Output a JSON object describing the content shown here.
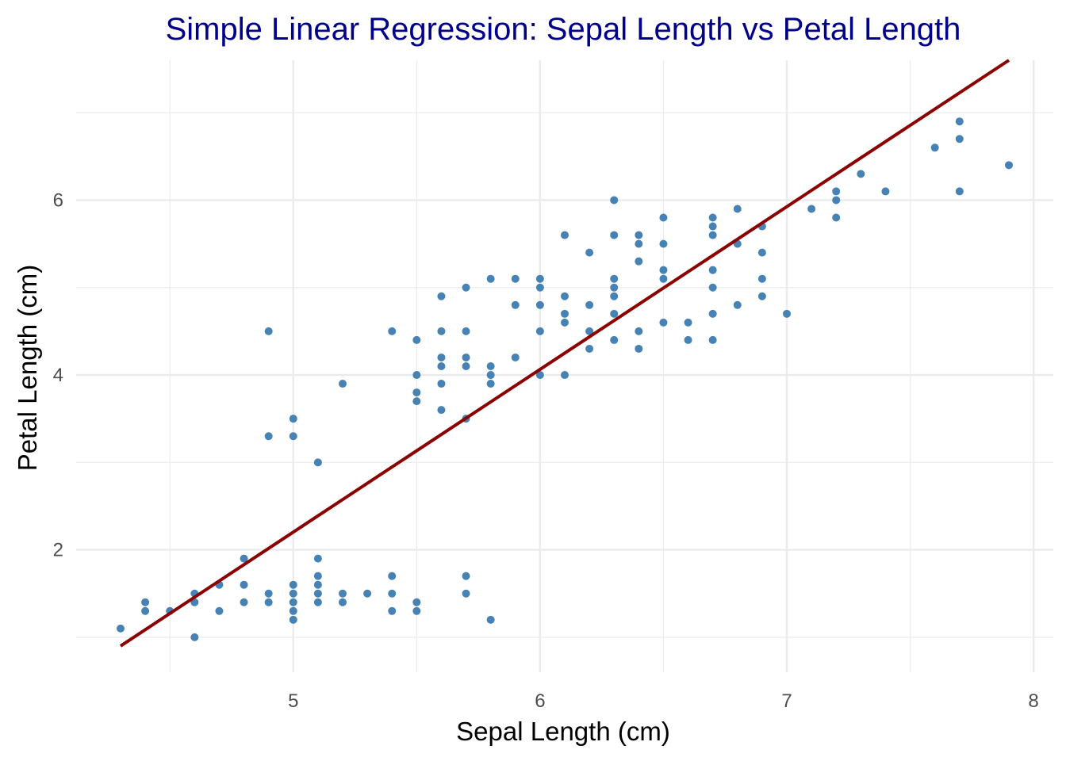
{
  "chart_data": {
    "type": "scatter",
    "title": "Simple Linear Regression: Sepal Length vs Petal Length",
    "xlabel": "Sepal Length (cm)",
    "ylabel": "Petal Length (cm)",
    "xlim": [
      4.12,
      8.08
    ],
    "ylim": [
      0.6,
      7.6
    ],
    "x_ticks": [
      5,
      6,
      7,
      8
    ],
    "x_tick_labels": [
      "5",
      "6",
      "7",
      "8"
    ],
    "x_minor": [
      4.5,
      5.5,
      6.5,
      7.5
    ],
    "y_ticks": [
      2,
      4,
      6
    ],
    "y_tick_labels": [
      "2",
      "4",
      "6"
    ],
    "y_minor": [
      1,
      3,
      5,
      7
    ],
    "grid": true,
    "colors": {
      "points": "#4682b4",
      "line": "#8b0000",
      "title": "#00008b",
      "grid": "#ebebeb"
    },
    "series": [
      {
        "points": [
          [
            4.3,
            1.1
          ],
          [
            4.4,
            1.3
          ],
          [
            4.4,
            1.4
          ],
          [
            4.5,
            1.3
          ],
          [
            4.6,
            1.0
          ],
          [
            4.6,
            1.4
          ],
          [
            4.6,
            1.5
          ],
          [
            4.7,
            1.3
          ],
          [
            4.7,
            1.6
          ],
          [
            4.8,
            1.4
          ],
          [
            4.8,
            1.6
          ],
          [
            4.8,
            1.9
          ],
          [
            4.9,
            1.4
          ],
          [
            4.9,
            1.5
          ],
          [
            4.9,
            3.3
          ],
          [
            4.9,
            4.5
          ],
          [
            5.0,
            1.2
          ],
          [
            5.0,
            1.3
          ],
          [
            5.0,
            1.4
          ],
          [
            5.0,
            1.5
          ],
          [
            5.0,
            1.6
          ],
          [
            5.0,
            3.3
          ],
          [
            5.0,
            3.5
          ],
          [
            5.1,
            1.4
          ],
          [
            5.1,
            1.5
          ],
          [
            5.1,
            1.6
          ],
          [
            5.1,
            1.7
          ],
          [
            5.1,
            1.9
          ],
          [
            5.1,
            3.0
          ],
          [
            5.2,
            1.4
          ],
          [
            5.2,
            1.5
          ],
          [
            5.2,
            3.9
          ],
          [
            5.3,
            1.5
          ],
          [
            5.4,
            1.3
          ],
          [
            5.4,
            1.5
          ],
          [
            5.4,
            1.7
          ],
          [
            5.4,
            4.5
          ],
          [
            5.5,
            1.3
          ],
          [
            5.5,
            1.4
          ],
          [
            5.5,
            3.7
          ],
          [
            5.5,
            3.8
          ],
          [
            5.5,
            4.0
          ],
          [
            5.5,
            4.4
          ],
          [
            5.6,
            3.6
          ],
          [
            5.6,
            3.9
          ],
          [
            5.6,
            4.1
          ],
          [
            5.6,
            4.2
          ],
          [
            5.6,
            4.5
          ],
          [
            5.6,
            4.9
          ],
          [
            5.7,
            1.5
          ],
          [
            5.7,
            1.7
          ],
          [
            5.7,
            3.5
          ],
          [
            5.7,
            4.1
          ],
          [
            5.7,
            4.2
          ],
          [
            5.7,
            4.5
          ],
          [
            5.7,
            5.0
          ],
          [
            5.8,
            1.2
          ],
          [
            5.8,
            3.9
          ],
          [
            5.8,
            4.0
          ],
          [
            5.8,
            4.1
          ],
          [
            5.8,
            5.1
          ],
          [
            5.9,
            4.2
          ],
          [
            5.9,
            4.8
          ],
          [
            5.9,
            5.1
          ],
          [
            6.0,
            4.0
          ],
          [
            6.0,
            4.5
          ],
          [
            6.0,
            4.8
          ],
          [
            6.0,
            5.0
          ],
          [
            6.0,
            5.1
          ],
          [
            6.1,
            4.0
          ],
          [
            6.1,
            4.6
          ],
          [
            6.1,
            4.7
          ],
          [
            6.1,
            4.9
          ],
          [
            6.1,
            5.6
          ],
          [
            6.2,
            4.3
          ],
          [
            6.2,
            4.5
          ],
          [
            6.2,
            4.8
          ],
          [
            6.2,
            5.4
          ],
          [
            6.3,
            4.4
          ],
          [
            6.3,
            4.7
          ],
          [
            6.3,
            4.9
          ],
          [
            6.3,
            5.0
          ],
          [
            6.3,
            5.1
          ],
          [
            6.3,
            5.6
          ],
          [
            6.3,
            6.0
          ],
          [
            6.4,
            4.3
          ],
          [
            6.4,
            4.5
          ],
          [
            6.4,
            5.3
          ],
          [
            6.4,
            5.5
          ],
          [
            6.4,
            5.6
          ],
          [
            6.5,
            4.6
          ],
          [
            6.5,
            5.1
          ],
          [
            6.5,
            5.2
          ],
          [
            6.5,
            5.5
          ],
          [
            6.5,
            5.8
          ],
          [
            6.6,
            4.4
          ],
          [
            6.6,
            4.6
          ],
          [
            6.7,
            4.4
          ],
          [
            6.7,
            4.7
          ],
          [
            6.7,
            5.0
          ],
          [
            6.7,
            5.2
          ],
          [
            6.7,
            5.6
          ],
          [
            6.7,
            5.7
          ],
          [
            6.7,
            5.8
          ],
          [
            6.8,
            4.8
          ],
          [
            6.8,
            5.5
          ],
          [
            6.8,
            5.9
          ],
          [
            6.9,
            4.9
          ],
          [
            6.9,
            5.1
          ],
          [
            6.9,
            5.4
          ],
          [
            6.9,
            5.7
          ],
          [
            7.0,
            4.7
          ],
          [
            7.1,
            5.9
          ],
          [
            7.2,
            5.8
          ],
          [
            7.2,
            6.0
          ],
          [
            7.2,
            6.1
          ],
          [
            7.3,
            6.3
          ],
          [
            7.4,
            6.1
          ],
          [
            7.6,
            6.6
          ],
          [
            7.7,
            6.1
          ],
          [
            7.7,
            6.7
          ],
          [
            7.7,
            6.9
          ],
          [
            7.9,
            6.4
          ]
        ]
      }
    ],
    "regression_line": {
      "x": [
        4.3,
        7.9
      ],
      "y": [
        0.9,
        7.6
      ]
    }
  }
}
